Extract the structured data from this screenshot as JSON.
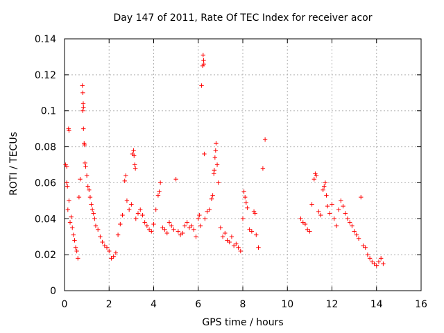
{
  "chart_data": {
    "type": "scatter",
    "title": "Day 147 of 2011, Rate Of TEC Index for receiver acor",
    "xlabel": "GPS time / hours",
    "ylabel": "ROTI / TECUs",
    "xlim": [
      0,
      16
    ],
    "ylim": [
      0,
      0.14
    ],
    "xticks": [
      0,
      2,
      4,
      6,
      8,
      10,
      12,
      14,
      16
    ],
    "yticks": [
      0,
      0.02,
      0.04,
      0.06,
      0.08,
      0.1,
      0.12,
      0.14
    ],
    "xtick_labels": [
      "0",
      "2",
      "4",
      "6",
      "8",
      "10",
      "12",
      "14",
      "16"
    ],
    "ytick_labels": [
      "0",
      "0.02",
      "0.04",
      "0.06",
      "0.08",
      "0.1",
      "0.12",
      "0.14"
    ],
    "grid": true,
    "marker": "+",
    "marker_color": "#ff0000",
    "series": [
      {
        "name": "ROTI",
        "points": [
          [
            0.05,
            0.07
          ],
          [
            0.1,
            0.069
          ],
          [
            0.1,
            0.06
          ],
          [
            0.13,
            0.058
          ],
          [
            0.18,
            0.09
          ],
          [
            0.2,
            0.089
          ],
          [
            0.15,
            0.045
          ],
          [
            0.2,
            0.05
          ],
          [
            0.25,
            0.038
          ],
          [
            0.3,
            0.041
          ],
          [
            0.35,
            0.035
          ],
          [
            0.4,
            0.031
          ],
          [
            0.45,
            0.028
          ],
          [
            0.5,
            0.024
          ],
          [
            0.55,
            0.022
          ],
          [
            0.6,
            0.018
          ],
          [
            0.65,
            0.052
          ],
          [
            0.7,
            0.062
          ],
          [
            0.8,
            0.114
          ],
          [
            0.82,
            0.11
          ],
          [
            0.84,
            0.104
          ],
          [
            0.82,
            0.1
          ],
          [
            0.85,
            0.102
          ],
          [
            0.85,
            0.09
          ],
          [
            0.88,
            0.082
          ],
          [
            0.9,
            0.081
          ],
          [
            0.92,
            0.071
          ],
          [
            0.95,
            0.069
          ],
          [
            1.0,
            0.064
          ],
          [
            1.05,
            0.058
          ],
          [
            1.1,
            0.056
          ],
          [
            1.15,
            0.052
          ],
          [
            1.2,
            0.048
          ],
          [
            1.25,
            0.045
          ],
          [
            1.3,
            0.043
          ],
          [
            1.35,
            0.04
          ],
          [
            1.4,
            0.036
          ],
          [
            1.5,
            0.034
          ],
          [
            1.6,
            0.03
          ],
          [
            1.7,
            0.027
          ],
          [
            1.8,
            0.025
          ],
          [
            1.9,
            0.024
          ],
          [
            2.0,
            0.022
          ],
          [
            2.1,
            0.018
          ],
          [
            2.2,
            0.019
          ],
          [
            2.3,
            0.021
          ],
          [
            2.4,
            0.031
          ],
          [
            2.5,
            0.037
          ],
          [
            2.6,
            0.042
          ],
          [
            2.7,
            0.061
          ],
          [
            2.75,
            0.064
          ],
          [
            2.8,
            0.05
          ],
          [
            2.9,
            0.045
          ],
          [
            3.0,
            0.048
          ],
          [
            3.05,
            0.076
          ],
          [
            3.1,
            0.078
          ],
          [
            3.12,
            0.075
          ],
          [
            3.15,
            0.07
          ],
          [
            3.18,
            0.068
          ],
          [
            3.2,
            0.04
          ],
          [
            3.3,
            0.043
          ],
          [
            3.4,
            0.045
          ],
          [
            3.5,
            0.042
          ],
          [
            3.6,
            0.038
          ],
          [
            3.7,
            0.036
          ],
          [
            3.8,
            0.034
          ],
          [
            3.9,
            0.033
          ],
          [
            4.0,
            0.037
          ],
          [
            4.1,
            0.045
          ],
          [
            4.2,
            0.053
          ],
          [
            4.25,
            0.055
          ],
          [
            4.3,
            0.06
          ],
          [
            4.4,
            0.035
          ],
          [
            4.5,
            0.034
          ],
          [
            4.6,
            0.032
          ],
          [
            4.7,
            0.038
          ],
          [
            4.8,
            0.036
          ],
          [
            4.9,
            0.034
          ],
          [
            5.0,
            0.062
          ],
          [
            5.1,
            0.033
          ],
          [
            5.2,
            0.031
          ],
          [
            5.3,
            0.032
          ],
          [
            5.4,
            0.036
          ],
          [
            5.5,
            0.038
          ],
          [
            5.6,
            0.035
          ],
          [
            5.7,
            0.036
          ],
          [
            5.8,
            0.034
          ],
          [
            5.9,
            0.03
          ],
          [
            6.0,
            0.04
          ],
          [
            6.05,
            0.042
          ],
          [
            6.1,
            0.036
          ],
          [
            6.15,
            0.114
          ],
          [
            6.2,
            0.125
          ],
          [
            6.22,
            0.131
          ],
          [
            6.24,
            0.128
          ],
          [
            6.25,
            0.126
          ],
          [
            6.27,
            0.076
          ],
          [
            6.3,
            0.04
          ],
          [
            6.4,
            0.044
          ],
          [
            6.5,
            0.045
          ],
          [
            6.6,
            0.051
          ],
          [
            6.65,
            0.053
          ],
          [
            6.7,
            0.065
          ],
          [
            6.72,
            0.067
          ],
          [
            6.75,
            0.074
          ],
          [
            6.78,
            0.078
          ],
          [
            6.8,
            0.082
          ],
          [
            6.85,
            0.07
          ],
          [
            6.9,
            0.06
          ],
          [
            7.0,
            0.035
          ],
          [
            7.1,
            0.03
          ],
          [
            7.2,
            0.032
          ],
          [
            7.3,
            0.028
          ],
          [
            7.4,
            0.027
          ],
          [
            7.5,
            0.03
          ],
          [
            7.6,
            0.025
          ],
          [
            7.7,
            0.026
          ],
          [
            7.8,
            0.024
          ],
          [
            7.9,
            0.022
          ],
          [
            8.0,
            0.04
          ],
          [
            8.05,
            0.055
          ],
          [
            8.1,
            0.052
          ],
          [
            8.15,
            0.049
          ],
          [
            8.2,
            0.046
          ],
          [
            8.3,
            0.034
          ],
          [
            8.4,
            0.033
          ],
          [
            8.5,
            0.044
          ],
          [
            8.55,
            0.043
          ],
          [
            8.6,
            0.031
          ],
          [
            8.7,
            0.024
          ],
          [
            8.9,
            0.068
          ],
          [
            9.0,
            0.084
          ],
          [
            10.6,
            0.04
          ],
          [
            10.7,
            0.038
          ],
          [
            10.8,
            0.037
          ],
          [
            10.9,
            0.034
          ],
          [
            11.0,
            0.033
          ],
          [
            11.1,
            0.048
          ],
          [
            11.2,
            0.062
          ],
          [
            11.25,
            0.065
          ],
          [
            11.3,
            0.064
          ],
          [
            11.4,
            0.044
          ],
          [
            11.5,
            0.042
          ],
          [
            11.6,
            0.056
          ],
          [
            11.65,
            0.058
          ],
          [
            11.7,
            0.06
          ],
          [
            11.75,
            0.053
          ],
          [
            11.8,
            0.047
          ],
          [
            11.9,
            0.043
          ],
          [
            12.0,
            0.048
          ],
          [
            12.1,
            0.04
          ],
          [
            12.2,
            0.036
          ],
          [
            12.3,
            0.045
          ],
          [
            12.4,
            0.05
          ],
          [
            12.5,
            0.047
          ],
          [
            12.6,
            0.043
          ],
          [
            12.7,
            0.04
          ],
          [
            12.8,
            0.038
          ],
          [
            12.9,
            0.036
          ],
          [
            13.0,
            0.033
          ],
          [
            13.1,
            0.031
          ],
          [
            13.2,
            0.029
          ],
          [
            13.3,
            0.052
          ],
          [
            13.4,
            0.025
          ],
          [
            13.5,
            0.024
          ],
          [
            13.6,
            0.02
          ],
          [
            13.7,
            0.018
          ],
          [
            13.8,
            0.016
          ],
          [
            13.9,
            0.015
          ],
          [
            14.0,
            0.014
          ],
          [
            14.1,
            0.016
          ],
          [
            14.2,
            0.018
          ],
          [
            14.3,
            0.015
          ]
        ]
      }
    ]
  }
}
